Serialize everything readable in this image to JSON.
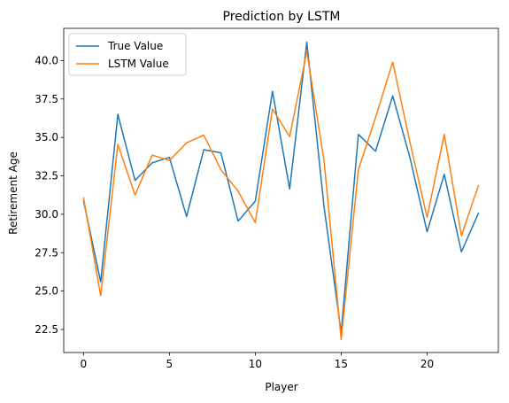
{
  "chart_data": {
    "type": "line",
    "title": "Prediction by LSTM",
    "xlabel": "Player",
    "ylabel": "Retirement Age",
    "x": [
      0,
      1,
      2,
      3,
      4,
      5,
      6,
      7,
      8,
      9,
      10,
      11,
      12,
      13,
      14,
      15,
      16,
      17,
      18,
      19,
      20,
      21,
      22,
      23
    ],
    "xlim": [
      -1.15,
      24.15
    ],
    "ylim": [
      21.0,
      42.1
    ],
    "xticks": [
      0,
      5,
      10,
      15,
      20
    ],
    "xtick_labels": [
      "0",
      "5",
      "10",
      "15",
      "20"
    ],
    "yticks": [
      22.5,
      25.0,
      27.5,
      30.0,
      32.5,
      35.0,
      37.5,
      40.0
    ],
    "ytick_labels": [
      "22.5",
      "25.0",
      "27.5",
      "30.0",
      "32.5",
      "35.0",
      "37.5",
      "40.0"
    ],
    "grid": false,
    "legend_position": "top-left",
    "series": [
      {
        "name": "True Value",
        "color": "#1f77b4",
        "values": [
          30.9,
          25.6,
          36.5,
          32.2,
          33.35,
          33.7,
          29.85,
          34.2,
          34.0,
          29.55,
          30.85,
          38.0,
          31.65,
          41.2,
          30.5,
          22.3,
          35.2,
          34.1,
          37.7,
          33.7,
          28.85,
          32.6,
          27.55,
          30.1
        ]
      },
      {
        "name": "LSTM Value",
        "color": "#ff7f0e",
        "values": [
          31.1,
          24.7,
          34.55,
          31.25,
          33.85,
          33.5,
          34.65,
          35.15,
          32.9,
          31.5,
          29.45,
          36.85,
          35.05,
          40.6,
          33.5,
          21.85,
          32.9,
          36.3,
          39.9,
          34.7,
          29.8,
          35.2,
          28.6,
          31.9
        ]
      }
    ]
  }
}
